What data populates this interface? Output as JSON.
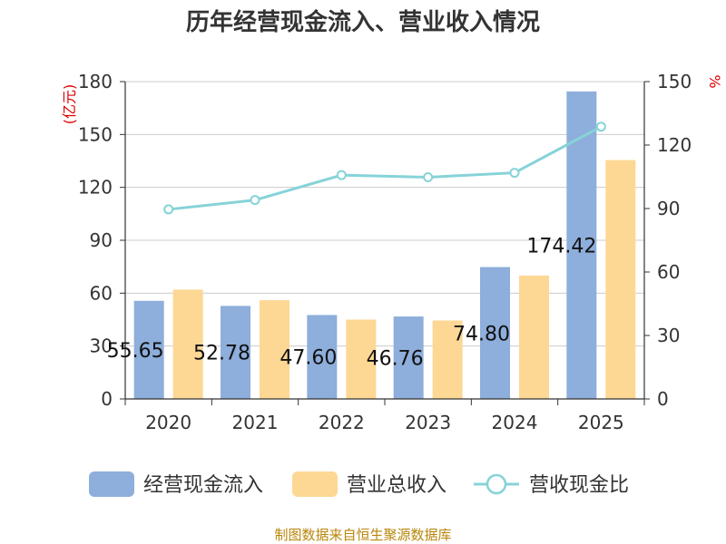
{
  "chart_data": {
    "type": "bar",
    "title": "历年经营现金流入、营业收入情况",
    "categories": [
      "2020",
      "2021",
      "2022",
      "2023",
      "2024",
      "2025"
    ],
    "series": [
      {
        "name": "经营现金流入",
        "kind": "bar",
        "axis": "left",
        "color": "#8eaedb",
        "values": [
          55.65,
          52.78,
          47.6,
          46.76,
          74.8,
          174.42
        ],
        "labels": [
          "55.65",
          "52.78",
          "47.60",
          "46.76",
          "74.80",
          "174.42"
        ]
      },
      {
        "name": "营业总收入",
        "kind": "bar",
        "axis": "left",
        "color": "#fdd794",
        "values": [
          62,
          56,
          45,
          44.5,
          70,
          135.5
        ]
      },
      {
        "name": "营收现金比",
        "kind": "line",
        "axis": "right",
        "color": "#86d3d8",
        "values": [
          89.6,
          94.0,
          105.8,
          104.8,
          106.9,
          128.7
        ]
      }
    ],
    "left_axis": {
      "unit": "(亿元)",
      "ylim": [
        0,
        180
      ],
      "ticks": [
        0,
        30,
        60,
        90,
        120,
        150,
        180
      ]
    },
    "right_axis": {
      "unit": "%",
      "ylim": [
        0,
        150
      ],
      "ticks": [
        0,
        30,
        60,
        90,
        120,
        150
      ]
    },
    "grid": true,
    "legend_position": "bottom"
  },
  "source_text": "制图数据来自恒生聚源数据库"
}
